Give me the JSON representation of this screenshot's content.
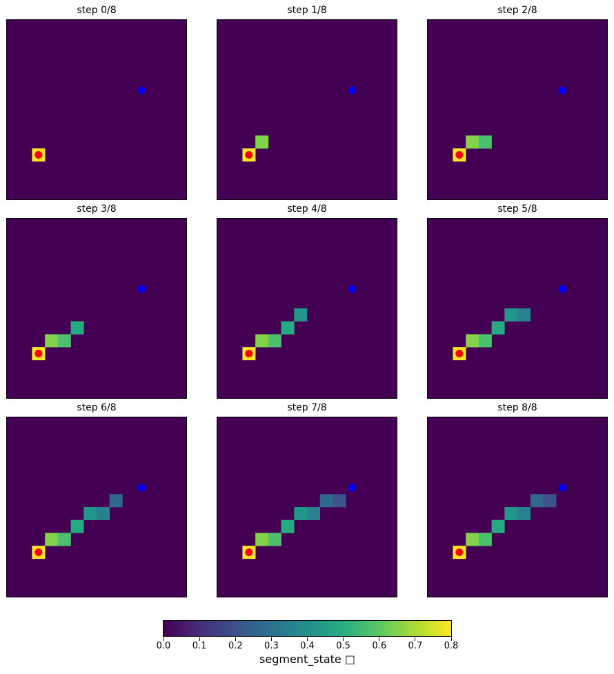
{
  "chart_data": {
    "type": "heatmap",
    "grid_size": 14,
    "colormap": "viridis",
    "color_range": [
      0.0,
      0.8
    ],
    "source_cell": {
      "row": 10,
      "col": 2,
      "color": "#ff0000"
    },
    "target_cell": {
      "row": 5,
      "col": 10,
      "color": "#0000ff"
    },
    "background_value": 0.0,
    "panels": [
      {
        "title": "step 0/8",
        "cells": [
          {
            "row": 10,
            "col": 2,
            "value": 0.8
          }
        ]
      },
      {
        "title": "step 1/8",
        "cells": [
          {
            "row": 10,
            "col": 2,
            "value": 0.8
          },
          {
            "row": 9,
            "col": 3,
            "value": 0.65
          }
        ]
      },
      {
        "title": "step 2/8",
        "cells": [
          {
            "row": 10,
            "col": 2,
            "value": 0.8
          },
          {
            "row": 9,
            "col": 3,
            "value": 0.65
          },
          {
            "row": 9,
            "col": 4,
            "value": 0.57
          }
        ]
      },
      {
        "title": "step 3/8",
        "cells": [
          {
            "row": 10,
            "col": 2,
            "value": 0.8
          },
          {
            "row": 9,
            "col": 3,
            "value": 0.65
          },
          {
            "row": 9,
            "col": 4,
            "value": 0.57
          },
          {
            "row": 8,
            "col": 5,
            "value": 0.49
          }
        ]
      },
      {
        "title": "step 4/8",
        "cells": [
          {
            "row": 10,
            "col": 2,
            "value": 0.8
          },
          {
            "row": 9,
            "col": 3,
            "value": 0.65
          },
          {
            "row": 9,
            "col": 4,
            "value": 0.57
          },
          {
            "row": 8,
            "col": 5,
            "value": 0.49
          },
          {
            "row": 7,
            "col": 6,
            "value": 0.42
          }
        ]
      },
      {
        "title": "step 5/8",
        "cells": [
          {
            "row": 10,
            "col": 2,
            "value": 0.8
          },
          {
            "row": 9,
            "col": 3,
            "value": 0.65
          },
          {
            "row": 9,
            "col": 4,
            "value": 0.57
          },
          {
            "row": 8,
            "col": 5,
            "value": 0.49
          },
          {
            "row": 7,
            "col": 6,
            "value": 0.42
          },
          {
            "row": 7,
            "col": 7,
            "value": 0.35
          }
        ]
      },
      {
        "title": "step 6/8",
        "cells": [
          {
            "row": 10,
            "col": 2,
            "value": 0.8
          },
          {
            "row": 9,
            "col": 3,
            "value": 0.65
          },
          {
            "row": 9,
            "col": 4,
            "value": 0.57
          },
          {
            "row": 8,
            "col": 5,
            "value": 0.49
          },
          {
            "row": 7,
            "col": 6,
            "value": 0.42
          },
          {
            "row": 7,
            "col": 7,
            "value": 0.35
          },
          {
            "row": 6,
            "col": 8,
            "value": 0.27
          }
        ]
      },
      {
        "title": "step 7/8",
        "cells": [
          {
            "row": 10,
            "col": 2,
            "value": 0.8
          },
          {
            "row": 9,
            "col": 3,
            "value": 0.65
          },
          {
            "row": 9,
            "col": 4,
            "value": 0.57
          },
          {
            "row": 8,
            "col": 5,
            "value": 0.49
          },
          {
            "row": 7,
            "col": 6,
            "value": 0.42
          },
          {
            "row": 7,
            "col": 7,
            "value": 0.35
          },
          {
            "row": 6,
            "col": 8,
            "value": 0.27
          },
          {
            "row": 6,
            "col": 9,
            "value": 0.2
          }
        ]
      },
      {
        "title": "step 8/8",
        "cells": [
          {
            "row": 10,
            "col": 2,
            "value": 0.8
          },
          {
            "row": 9,
            "col": 3,
            "value": 0.65
          },
          {
            "row": 9,
            "col": 4,
            "value": 0.57
          },
          {
            "row": 8,
            "col": 5,
            "value": 0.49
          },
          {
            "row": 7,
            "col": 6,
            "value": 0.42
          },
          {
            "row": 7,
            "col": 7,
            "value": 0.35
          },
          {
            "row": 6,
            "col": 8,
            "value": 0.27
          },
          {
            "row": 6,
            "col": 9,
            "value": 0.2
          }
        ]
      }
    ],
    "colorbar": {
      "label": "segment_state □",
      "ticks": [
        "0.0",
        "0.1",
        "0.2",
        "0.3",
        "0.4",
        "0.5",
        "0.6",
        "0.7",
        "0.8"
      ],
      "tick_values": [
        0.0,
        0.1,
        0.2,
        0.3,
        0.4,
        0.5,
        0.6,
        0.7,
        0.8
      ],
      "orientation": "horizontal",
      "placement": "bottom"
    }
  }
}
